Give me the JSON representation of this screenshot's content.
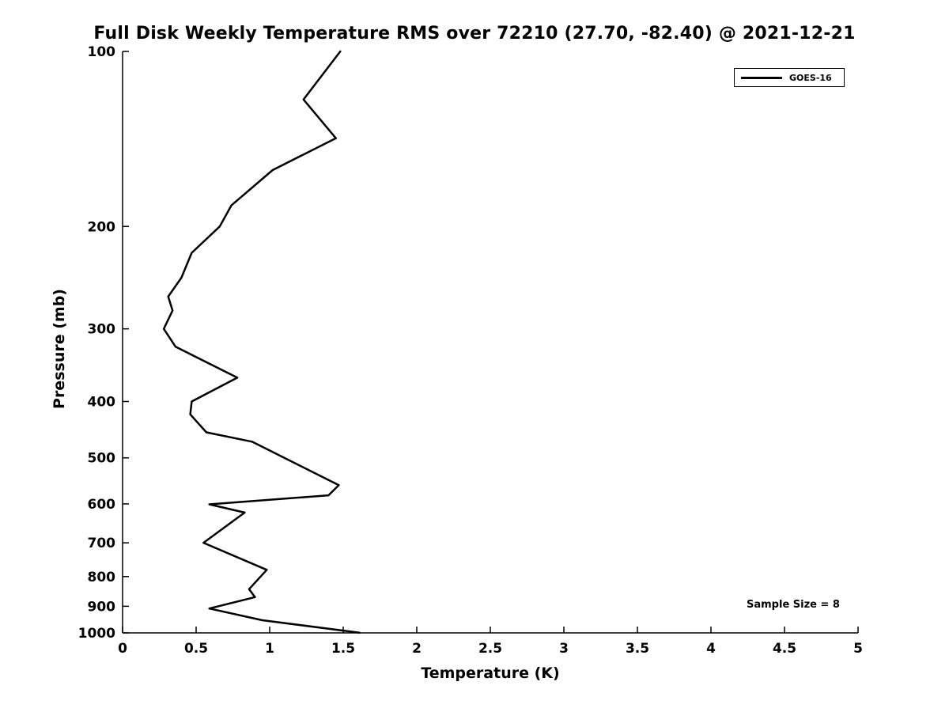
{
  "title": "Full Disk Weekly Temperature RMS over 72210 (27.70, -82.40) @ 2021-12-21",
  "legend": {
    "series_label": "GOES-16"
  },
  "annotation": {
    "sample_size_text": "Sample Size = 8"
  },
  "colors": {
    "line": "#000000",
    "text": "#000000",
    "background": "#ffffff",
    "axis": "#000000"
  },
  "chart_data": {
    "type": "line",
    "title": "Full Disk Weekly Temperature RMS over 72210 (27.70, -82.40) @ 2021-12-21",
    "xlabel": "Temperature (K)",
    "ylabel": "Pressure (mb)",
    "x_range": [
      0,
      5
    ],
    "xticks": [
      0,
      0.5,
      1,
      1.5,
      2,
      2.5,
      3,
      3.5,
      4,
      4.5,
      5
    ],
    "xtick_labels": [
      "0",
      "0.5",
      "1",
      "1.5",
      "2",
      "2.5",
      "3",
      "3.5",
      "4",
      "4.5",
      "5"
    ],
    "y_scale": "log",
    "y_range": [
      100,
      1000
    ],
    "y_direction": "reversed-display-100-at-top",
    "yticks": [
      100,
      200,
      300,
      400,
      500,
      600,
      700,
      800,
      900,
      1000
    ],
    "ytick_labels": [
      "100",
      "200",
      "300",
      "400",
      "500",
      "600",
      "700",
      "800",
      "900",
      "1000"
    ],
    "grid": false,
    "legend_position": "top-right",
    "sample_size": 8,
    "series": [
      {
        "name": "GOES-16",
        "color": "#000000",
        "pressure_mb": [
          100,
          121,
          141,
          160,
          184,
          200,
          222,
          245,
          264,
          279,
          300,
          322,
          364,
          400,
          421,
          452,
          469,
          557,
          580,
          601,
          621,
          700,
          779,
          841,
          868,
          908,
          951,
          999
        ],
        "rms_k": [
          1.48,
          1.23,
          1.45,
          1.02,
          0.74,
          0.66,
          0.47,
          0.4,
          0.31,
          0.34,
          0.28,
          0.36,
          0.78,
          0.47,
          0.46,
          0.57,
          0.88,
          1.47,
          1.4,
          0.59,
          0.83,
          0.55,
          0.98,
          0.86,
          0.9,
          0.59,
          0.95,
          1.61
        ]
      }
    ]
  }
}
